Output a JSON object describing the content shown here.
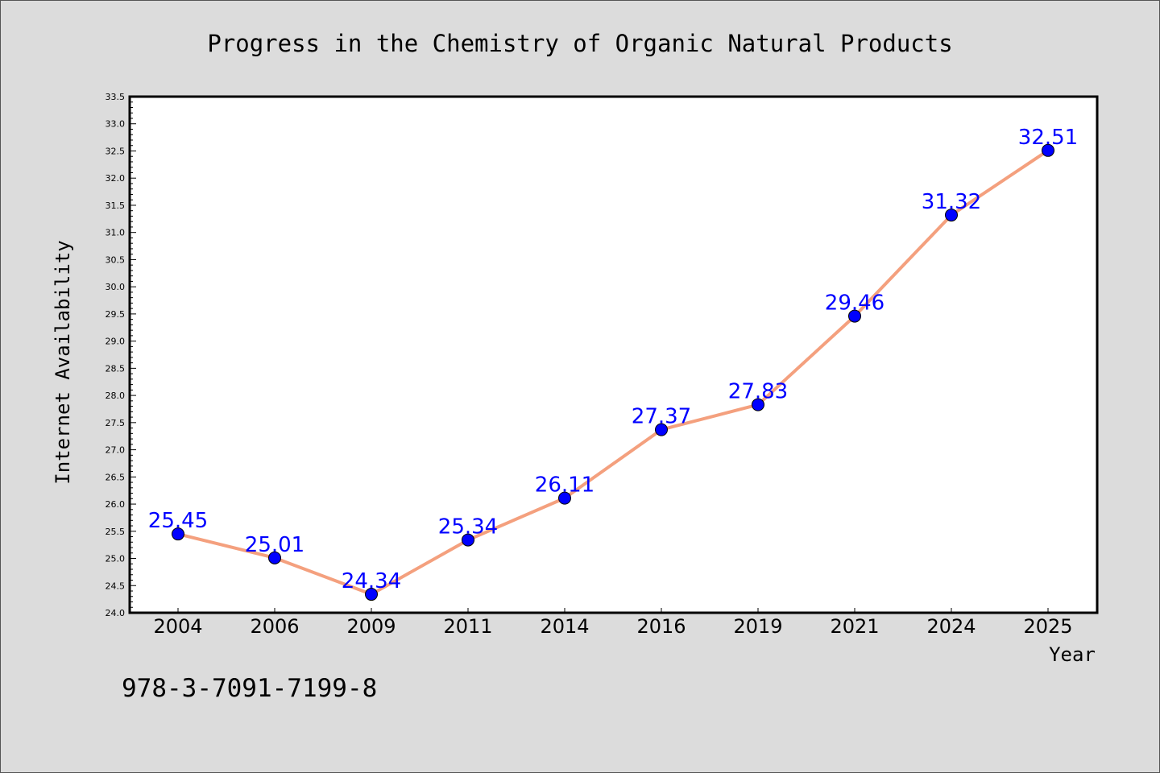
{
  "chart_data": {
    "type": "line",
    "title": "Progress in the Chemistry of Organic Natural Products",
    "xlabel": "Year",
    "ylabel": "Internet Availability",
    "categories": [
      "2004",
      "2006",
      "2009",
      "2011",
      "2014",
      "2016",
      "2019",
      "2021",
      "2024",
      "2025"
    ],
    "series": [
      {
        "values": [
          25.45,
          25.01,
          24.34,
          25.34,
          26.11,
          27.37,
          27.83,
          29.46,
          31.32,
          32.51
        ],
        "data_labels": [
          "25.45",
          "25.01",
          "24.34",
          "25.34",
          "26.11",
          "27.37",
          "27.83",
          "29.46",
          "31.32",
          "32.51"
        ],
        "line_color": "#f4a07e",
        "marker_color": "#0000ff"
      }
    ],
    "ylim": [
      24.0,
      33.5
    ],
    "yticks": [
      "24.0",
      "24.5",
      "25.0",
      "25.5",
      "26.0",
      "26.5",
      "27.0",
      "27.5",
      "28.0",
      "28.5",
      "29.0",
      "29.5",
      "30.0",
      "30.5",
      "31.0",
      "31.5",
      "32.0",
      "32.5",
      "33.0",
      "33.5"
    ],
    "grid": false,
    "label_color": "#0000ff"
  },
  "footnote": "978-3-7091-7199-8"
}
